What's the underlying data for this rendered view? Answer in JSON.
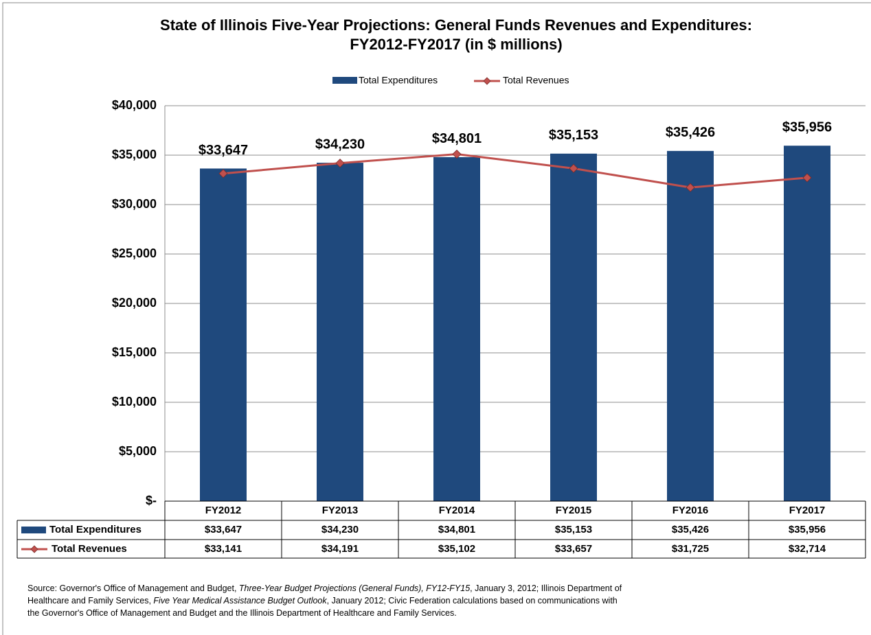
{
  "chart_data": {
    "type": "bar_line",
    "title": [
      "State of Illinois Five-Year Projections: General Funds Revenues and Expenditures:",
      "FY2012-FY2017 (in $ millions)"
    ],
    "categories": [
      "FY2012",
      "FY2013",
      "FY2014",
      "FY2015",
      "FY2016",
      "FY2017"
    ],
    "series": [
      {
        "name": "Total Expenditures",
        "type": "bar",
        "color": "#1f497d",
        "values": [
          33647,
          34230,
          34801,
          35153,
          35426,
          35956
        ],
        "value_labels": [
          "$33,647",
          "$34,230",
          "$34,801",
          "$35,153",
          "$35,426",
          "$35,956"
        ]
      },
      {
        "name": "Total Revenues",
        "type": "line",
        "color": "#c0504d",
        "values": [
          33141,
          34191,
          35102,
          33657,
          31725,
          32714
        ],
        "value_labels": [
          "$33,141",
          "$34,191",
          "$35,102",
          "$33,657",
          "$31,725",
          "$32,714"
        ]
      }
    ],
    "ylim": [
      0,
      40000
    ],
    "yticks": [
      {
        "value": 0,
        "label": "$-"
      },
      {
        "value": 5000,
        "label": "$5,000"
      },
      {
        "value": 10000,
        "label": "$10,000"
      },
      {
        "value": 15000,
        "label": "$15,000"
      },
      {
        "value": 20000,
        "label": "$20,000"
      },
      {
        "value": 25000,
        "label": "$25,000"
      },
      {
        "value": 30000,
        "label": "$30,000"
      },
      {
        "value": 35000,
        "label": "$35,000"
      },
      {
        "value": 40000,
        "label": "$40,000"
      }
    ],
    "grid": true,
    "legend": "top",
    "source": [
      [
        {
          "text": "Source: Governor's Office of Management and Budget, ",
          "italic": false
        },
        {
          "text": "Three-Year Budget Projections (General Funds), FY12-FY15",
          "italic": true
        },
        {
          "text": ", January 3, 2012; Illinois Department of",
          "italic": false
        }
      ],
      [
        {
          "text": "Healthcare and Family Services, ",
          "italic": false
        },
        {
          "text": "Five Year Medical Assistance Budget Outlook",
          "italic": true
        },
        {
          "text": ", January 2012; Civic Federation calculations based on communications with",
          "italic": false
        }
      ],
      [
        {
          "text": "the Governor's Office of Management and Budget and the Illinois Department of Healthcare and Family Services.",
          "italic": false
        }
      ]
    ]
  }
}
